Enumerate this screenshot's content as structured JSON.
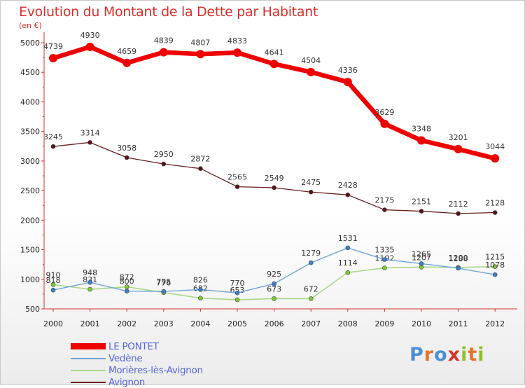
{
  "title": "Evolution du Montant de la Dette par Habitant",
  "subtitle": "(en €)",
  "logo": {
    "text": "Proxiti",
    "colors": [
      "#4d8fd6",
      "#e8742a",
      "#4d8fd6",
      "#d8362d",
      "#8fbf2e",
      "#e8742a",
      "#8fbf2e"
    ]
  },
  "chart_data": {
    "type": "line",
    "x": [
      "2000",
      "2001",
      "2002",
      "2003",
      "2004",
      "2005",
      "2006",
      "2007",
      "2008",
      "2009",
      "2010",
      "2011",
      "2012"
    ],
    "ylim": [
      500,
      5000
    ],
    "yticks": [
      "500",
      "1000",
      "1500",
      "2000",
      "2500",
      "3000",
      "3500",
      "4000",
      "4500",
      "5000"
    ],
    "grid": false,
    "legend_position": "bottom-left",
    "series": [
      {
        "name": "Avignon",
        "color": "#6b1f22",
        "point_color": "#5a1419",
        "width": 1.3,
        "radius": 3,
        "values": [
          3245,
          3314,
          3058,
          2950,
          2872,
          2565,
          2549,
          2475,
          2428,
          2175,
          2151,
          2112,
          2128
        ]
      },
      {
        "name": "Morières-lès-Avignon",
        "color": "#a8d888",
        "point_color": "#7dcb2e",
        "width": 1.6,
        "radius": 3,
        "values": [
          910,
          831,
          872,
          776,
          682,
          653,
          673,
          672,
          1114,
          1192,
          1207,
          1200,
          1215
        ]
      },
      {
        "name": "Vedène",
        "color": "#6fa3d6",
        "point_color": "#3d7fcf",
        "width": 1.4,
        "radius": 3,
        "values": [
          818,
          948,
          800,
          795,
          826,
          770,
          925,
          1279,
          1531,
          1335,
          1265,
          1188,
          1078
        ]
      },
      {
        "name": "LE PONTET",
        "color": "#ee0000",
        "point_color": "#ee0000",
        "width": 6.5,
        "radius": 6,
        "values": [
          4739,
          4930,
          4659,
          4839,
          4807,
          4833,
          4641,
          4504,
          4336,
          3629,
          3348,
          3201,
          3044
        ]
      }
    ]
  },
  "legend": [
    {
      "label": "LE PONTET",
      "color": "#ee0000",
      "thickness": 9
    },
    {
      "label": "Vedène",
      "color": "#6fa3d6",
      "thickness": 2
    },
    {
      "label": "Morières-lès-Avignon",
      "color": "#a8d888",
      "thickness": 2
    },
    {
      "label": "Avignon",
      "color": "#6b1f22",
      "thickness": 2
    }
  ]
}
